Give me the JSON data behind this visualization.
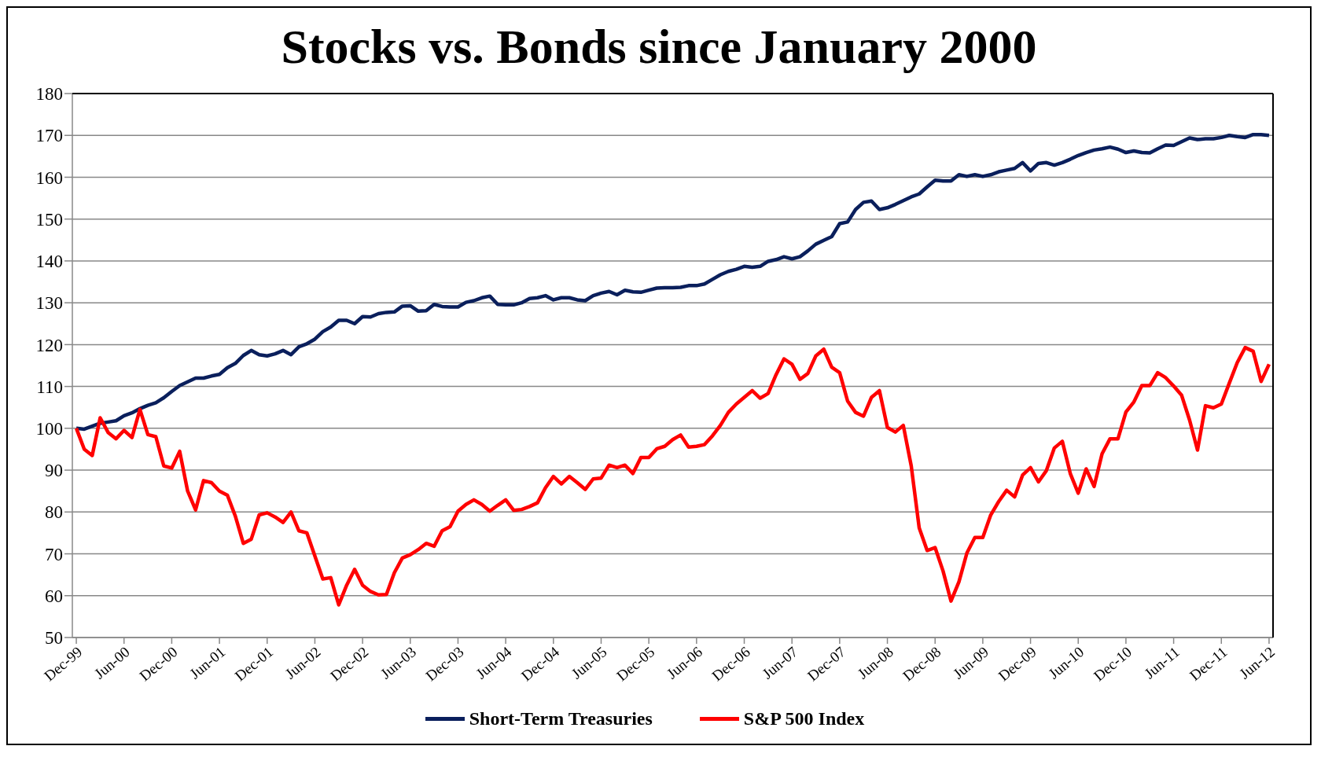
{
  "chart_data": {
    "type": "line",
    "title": "Stocks vs. Bonds since January 2000",
    "categories": [
      "Dec-99",
      null,
      null,
      null,
      null,
      null,
      "Jun-00",
      null,
      null,
      null,
      null,
      null,
      "Dec-00",
      null,
      null,
      null,
      null,
      null,
      "Jun-01",
      null,
      null,
      null,
      null,
      null,
      "Dec-01",
      null,
      null,
      null,
      null,
      null,
      "Jun-02",
      null,
      null,
      null,
      null,
      null,
      "Dec-02",
      null,
      null,
      null,
      null,
      null,
      "Jun-03",
      null,
      null,
      null,
      null,
      null,
      "Dec-03",
      null,
      null,
      null,
      null,
      null,
      "Jun-04",
      null,
      null,
      null,
      null,
      null,
      "Dec-04",
      null,
      null,
      null,
      null,
      null,
      "Jun-05",
      null,
      null,
      null,
      null,
      null,
      "Dec-05",
      null,
      null,
      null,
      null,
      null,
      "Jun-06",
      null,
      null,
      null,
      null,
      null,
      "Dec-06",
      null,
      null,
      null,
      null,
      null,
      "Jun-07",
      null,
      null,
      null,
      null,
      null,
      "Dec-07",
      null,
      null,
      null,
      null,
      null,
      "Jun-08",
      null,
      null,
      null,
      null,
      null,
      "Dec-08",
      null,
      null,
      null,
      null,
      null,
      "Jun-09",
      null,
      null,
      null,
      null,
      null,
      "Dec-09",
      null,
      null,
      null,
      null,
      null,
      "Jun-10",
      null,
      null,
      null,
      null,
      null,
      "Dec-10",
      null,
      null,
      null,
      null,
      null,
      "Jun-11",
      null,
      null,
      null,
      null,
      null,
      "Dec-11",
      null,
      null,
      null,
      null,
      null,
      "Jun-12"
    ],
    "series": [
      {
        "name": "Short-Term Treasuries",
        "color": "#0a1f5c",
        "values": [
          100,
          99.8,
          100.5,
          101.2,
          101.5,
          101.8,
          103,
          103.7,
          104.7,
          105.5,
          106.1,
          107.3,
          108.8,
          110.2,
          111.1,
          112,
          112,
          112.5,
          112.9,
          114.5,
          115.5,
          117.4,
          118.6,
          117.6,
          117.3,
          117.8,
          118.6,
          117.6,
          119.5,
          120.2,
          121.3,
          123.1,
          124.2,
          125.8,
          125.8,
          125,
          126.7,
          126.6,
          127.4,
          127.7,
          127.8,
          129.2,
          129.3,
          128,
          128.1,
          129.6,
          129.1,
          129,
          129,
          130.1,
          130.5,
          131.2,
          131.6,
          129.6,
          129.5,
          129.5,
          130,
          131,
          131.2,
          131.7,
          130.7,
          131.2,
          131.2,
          130.7,
          130.5,
          131.7,
          132.3,
          132.7,
          131.9,
          133,
          132.6,
          132.5,
          133,
          133.5,
          133.6,
          133.6,
          133.7,
          134.1,
          134.1,
          134.5,
          135.6,
          136.7,
          137.5,
          138,
          138.7,
          138.5,
          138.7,
          139.9,
          140.3,
          141,
          140.5,
          141,
          142.4,
          144,
          144.9,
          145.8,
          148.9,
          149.3,
          152.3,
          154,
          154.3,
          152.3,
          152.7,
          153.5,
          154.4,
          155.3,
          156,
          157.7,
          159.3,
          159.1,
          159.1,
          160.6,
          160.2,
          160.6,
          160.2,
          160.6,
          161.3,
          161.7,
          162.1,
          163.5,
          161.5,
          163.3,
          163.5,
          162.9,
          163.5,
          164.3,
          165.2,
          165.9,
          166.5,
          166.8,
          167.2,
          166.7,
          165.9,
          166.3,
          165.9,
          165.8,
          166.8,
          167.7,
          167.6,
          168.5,
          169.4,
          169,
          169.2,
          169.2,
          169.5,
          170,
          169.7,
          169.5,
          170.2,
          170.2,
          170
        ]
      },
      {
        "name": "S&P 500 Index",
        "color": "#ff0000",
        "values": [
          100,
          95,
          93.5,
          102.5,
          99,
          97.5,
          99.5,
          97.8,
          104.5,
          98.5,
          98,
          91,
          90.5,
          94.5,
          85,
          80.5,
          87.5,
          87,
          85,
          84,
          79,
          72.5,
          73.5,
          79.3,
          79.8,
          78.8,
          77.5,
          80,
          75.5,
          75,
          69.5,
          64,
          64.3,
          57.8,
          62.5,
          66.3,
          62.5,
          61,
          60.2,
          60.3,
          65.5,
          69,
          69.8,
          71,
          72.5,
          71.8,
          75.5,
          76.5,
          80.2,
          81.8,
          82.9,
          81.8,
          80.2,
          81.6,
          82.9,
          80.4,
          80.6,
          81.3,
          82.2,
          85.8,
          88.5,
          86.7,
          88.5,
          87,
          85.4,
          87.9,
          88.1,
          91.2,
          90.6,
          91.2,
          89.2,
          93,
          93,
          95.1,
          95.7,
          97.3,
          98.4,
          95.5,
          95.7,
          96.1,
          98.2,
          100.7,
          103.8,
          105.8,
          107.4,
          109,
          107.2,
          108.3,
          112.8,
          116.6,
          115.3,
          111.7,
          113.1,
          117.3,
          118.9,
          114.6,
          113.3,
          106.5,
          103.8,
          102.9,
          107.4,
          109,
          100.2,
          99.1,
          100.7,
          91,
          76.2,
          70.8,
          71.5,
          65.9,
          58.7,
          63.3,
          70.2,
          73.9,
          73.9,
          79.3,
          82.5,
          85.2,
          83.6,
          88.8,
          90.6,
          87.2,
          89.9,
          95.3,
          96.9,
          89.2,
          84.5,
          90.3,
          86.1,
          93.9,
          97.5,
          97.5,
          103.9,
          106.3,
          110.2,
          110.2,
          113.3,
          112.1,
          110.1,
          107.9,
          102,
          94.8,
          105.4,
          104.9,
          105.8,
          110.8,
          115.7,
          119.3,
          118.4,
          111.2,
          115.3
        ]
      }
    ],
    "ylim": [
      50,
      180
    ],
    "yticks": [
      50,
      60,
      70,
      80,
      90,
      100,
      110,
      120,
      130,
      140,
      150,
      160,
      170,
      180
    ],
    "grid": "y",
    "legend": "bottom",
    "marker": "none",
    "line_style": "solid"
  }
}
